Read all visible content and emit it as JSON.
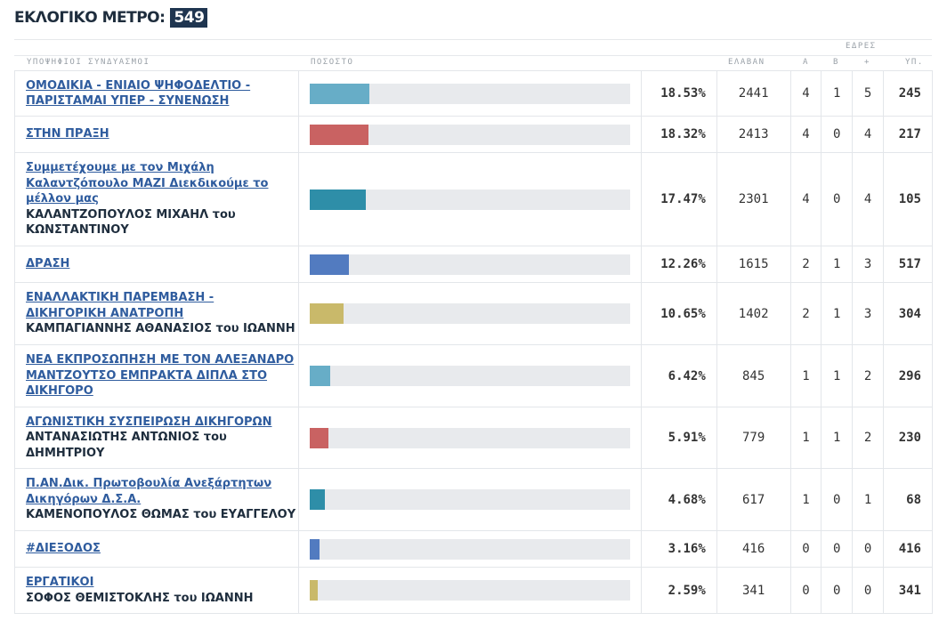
{
  "header": {
    "title": "ΕΚΛΟΓΙΚΟ ΜΕΤΡΟ:",
    "value": "549"
  },
  "columns": {
    "candidates": "ΥΠΟΨΗΦΙΟΙ ΣΥΝΔΥΑΣΜΟΙ",
    "percent": "ΠΟΣΟΣΤΟ",
    "votes": "ΕΛΑΒΑΝ",
    "seats": "ΕΔΡΕΣ",
    "a": "Α",
    "b": "Β",
    "plus": "+",
    "yp": "ΥΠ."
  },
  "rows": [
    {
      "name": "ΟΜΟΔΙΚΙΑ - ΕΝΙΑΙΟ ΨΗΦΟΔΕΛΤΙΟ - ΠΑΡΙΣΤΑΜΑΙ ΥΠΕΡ - ΣΥΝΕΝΩΣΗ",
      "sub": "",
      "pct": "18.53%",
      "pct_value": 18.53,
      "votes": "2441",
      "a": "4",
      "b": "1",
      "plus": "5",
      "yp": "245",
      "color": "#67adc7"
    },
    {
      "name": "ΣΤΗΝ ΠΡΑΞΗ",
      "sub": "",
      "pct": "18.32%",
      "pct_value": 18.32,
      "votes": "2413",
      "a": "4",
      "b": "0",
      "plus": "4",
      "yp": "217",
      "color": "#c96262"
    },
    {
      "name": "Συμμετέχουμε με τον Μιχάλη Καλαντζόπουλο ΜΑΖΙ Διεκδικούμε το μέλλον μας",
      "sub": "ΚΑΛΑΝΤΖΟΠΟΥΛΟΣ ΜΙΧΑΗΛ του ΚΩΝΣΤΑΝΤΙΝΟΥ",
      "pct": "17.47%",
      "pct_value": 17.47,
      "votes": "2301",
      "a": "4",
      "b": "0",
      "plus": "4",
      "yp": "105",
      "color": "#2e8ea8"
    },
    {
      "name": "ΔΡΑΣΗ",
      "sub": "",
      "pct": "12.26%",
      "pct_value": 12.26,
      "votes": "1615",
      "a": "2",
      "b": "1",
      "plus": "3",
      "yp": "517",
      "color": "#527bc0"
    },
    {
      "name": "ΕΝΑΛΛΑΚΤΙΚΗ ΠΑΡΕΜΒΑΣΗ - ΔΙΚΗΓΟΡΙΚΗ ΑΝΑΤΡΟΠΗ",
      "sub": "ΚΑΜΠΑΓΙΑΝΝΗΣ ΑΘΑΝΑΣΙΟΣ του ΙΩΑΝΝΗ",
      "pct": "10.65%",
      "pct_value": 10.65,
      "votes": "1402",
      "a": "2",
      "b": "1",
      "plus": "3",
      "yp": "304",
      "color": "#c9b96a"
    },
    {
      "name": "ΝΕΑ ΕΚΠΡΟΣΩΠΗΣΗ ΜΕ ΤΟΝ ΑΛΕΞΑΝΔΡΟ ΜΑΝΤΖΟΥΤΣΟ ΕΜΠΡΑΚΤΑ ΔΙΠΛΑ ΣΤΟ ΔΙΚΗΓΟΡΟ",
      "sub": "",
      "pct": "6.42%",
      "pct_value": 6.42,
      "votes": "845",
      "a": "1",
      "b": "1",
      "plus": "2",
      "yp": "296",
      "color": "#67adc7"
    },
    {
      "name": "ΑΓΩΝΙΣΤΙΚΗ ΣΥΣΠΕΙΡΩΣΗ ΔΙΚΗΓΟΡΩΝ",
      "sub": "ΑΝΤΑΝΑΣΙΩΤΗΣ ΑΝΤΩΝΙΟΣ του ΔΗΜΗΤΡΙΟΥ",
      "pct": "5.91%",
      "pct_value": 5.91,
      "votes": "779",
      "a": "1",
      "b": "1",
      "plus": "2",
      "yp": "230",
      "color": "#c96262"
    },
    {
      "name": "Π.ΑΝ.Δικ. Πρωτοβουλία Ανεξάρτητων Δικηγόρων Δ.Σ.Α.",
      "sub": "ΚΑΜΕΝΟΠΟΥΛΟΣ ΘΩΜΑΣ του ΕΥΑΓΓΕΛΟΥ",
      "pct": "4.68%",
      "pct_value": 4.68,
      "votes": "617",
      "a": "1",
      "b": "0",
      "plus": "1",
      "yp": "68",
      "color": "#2e8ea8"
    },
    {
      "name": "#ΔΙΕΞΟΔΟΣ",
      "sub": "",
      "pct": "3.16%",
      "pct_value": 3.16,
      "votes": "416",
      "a": "0",
      "b": "0",
      "plus": "0",
      "yp": "416",
      "color": "#527bc0"
    },
    {
      "name": "ΕΡΓΑΤΙΚΟΙ",
      "sub": "ΣΟΦΟΣ ΘΕΜΙΣΤΟΚΛΗΣ του ΙΩΑΝΝΗ",
      "pct": "2.59%",
      "pct_value": 2.59,
      "votes": "341",
      "a": "0",
      "b": "0",
      "plus": "0",
      "yp": "341",
      "color": "#c9b96a"
    }
  ]
}
